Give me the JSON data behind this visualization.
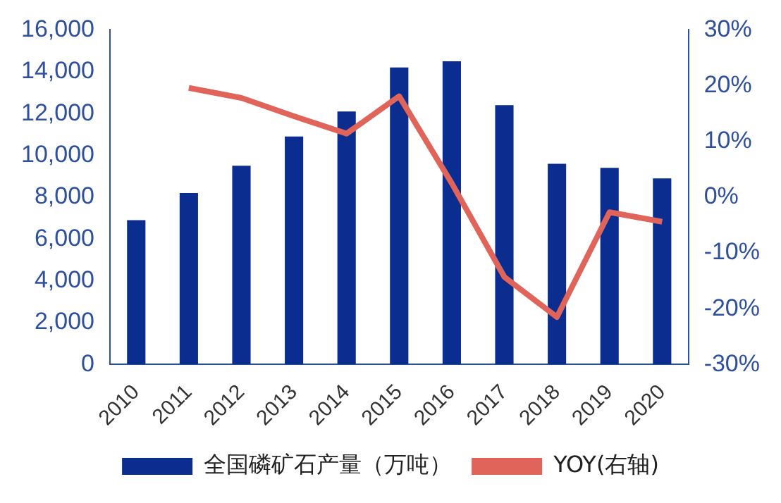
{
  "chart_data": {
    "type": "bar",
    "categories": [
      "2010",
      "2011",
      "2012",
      "2013",
      "2014",
      "2015",
      "2016",
      "2017",
      "2018",
      "2019",
      "2020"
    ],
    "series": [
      {
        "name": "全国磷矿石产量（万吨）",
        "color": "#0b2d8f",
        "values": [
          6900,
          8200,
          9500,
          10900,
          12100,
          14200,
          14500,
          12400,
          9600,
          9400,
          8900
        ]
      },
      {
        "name": "YOY(右轴)",
        "type": "line",
        "axis": "y2",
        "color": "#e0645a",
        "values": [
          null,
          19.6,
          17.8,
          14.5,
          11.4,
          18.1,
          2.5,
          -14.3,
          -21.5,
          -2.7,
          -4.4
        ]
      }
    ],
    "ylim": [
      0,
      16000
    ],
    "yticks": [
      {
        "value": 0,
        "label": "0"
      },
      {
        "value": 2000,
        "label": "2,000"
      },
      {
        "value": 4000,
        "label": "4,000"
      },
      {
        "value": 6000,
        "label": "6,000"
      },
      {
        "value": 8000,
        "label": "8,000"
      },
      {
        "value": 10000,
        "label": "10,000"
      },
      {
        "value": 12000,
        "label": "12,000"
      },
      {
        "value": 14000,
        "label": "14,000"
      },
      {
        "value": 16000,
        "label": "16,000"
      }
    ],
    "y2lim": [
      -30,
      30
    ],
    "y2ticks": [
      {
        "value": -30,
        "label": "-30%"
      },
      {
        "value": -20,
        "label": "-20%"
      },
      {
        "value": -10,
        "label": "-10%"
      },
      {
        "value": 0,
        "label": "0%"
      },
      {
        "value": 10,
        "label": "10%"
      },
      {
        "value": 20,
        "label": "20%"
      },
      {
        "value": 30,
        "label": "30%"
      }
    ],
    "grid": false,
    "legend": "bottom",
    "marker": "none"
  }
}
